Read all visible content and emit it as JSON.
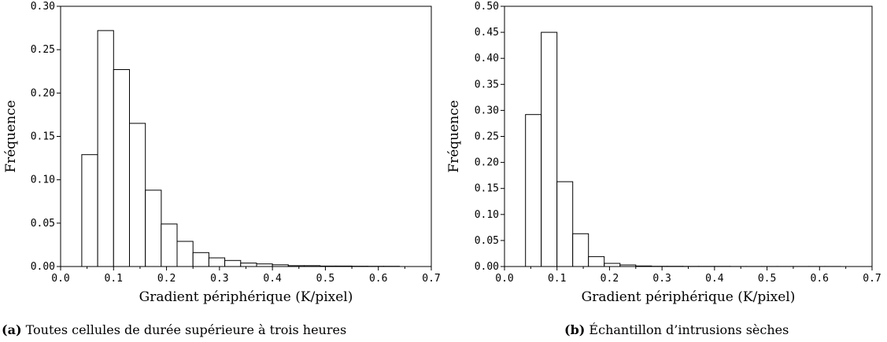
{
  "chart_data": [
    {
      "type": "bar",
      "xlabel": "Gradient périphérique (K/pixel)",
      "ylabel": "Fréquence",
      "xlim": [
        0.0,
        0.7
      ],
      "ylim": [
        0.0,
        0.3
      ],
      "xticks": [
        "0.0",
        "0.1",
        "0.2",
        "0.3",
        "0.4",
        "0.5",
        "0.6",
        "0.7"
      ],
      "yticks": [
        "0.00",
        "0.05",
        "0.10",
        "0.15",
        "0.20",
        "0.25",
        "0.30"
      ],
      "bin_edges": [
        0.04,
        0.07,
        0.1,
        0.13,
        0.16,
        0.19,
        0.22,
        0.25,
        0.28,
        0.31,
        0.34,
        0.37,
        0.4,
        0.43,
        0.46,
        0.49,
        0.52,
        0.55,
        0.58,
        0.61,
        0.64
      ],
      "values": [
        0.129,
        0.272,
        0.227,
        0.165,
        0.088,
        0.049,
        0.029,
        0.016,
        0.01,
        0.007,
        0.004,
        0.003,
        0.002,
        0.001,
        0.001,
        0.0005,
        0.0005,
        0.0004,
        0.0003,
        0.0003
      ],
      "grid": false,
      "caption_tag": "(a)",
      "caption_text": "Toutes cellules de durée supérieure à trois heures"
    },
    {
      "type": "bar",
      "xlabel": "Gradient périphérique (K/pixel)",
      "ylabel": "Fréquence",
      "xlim": [
        0.0,
        0.7
      ],
      "ylim": [
        0.0,
        0.5
      ],
      "xticks": [
        "0.0",
        "0.1",
        "0.2",
        "0.3",
        "0.4",
        "0.5",
        "0.6",
        "0.7"
      ],
      "yticks": [
        "0.00",
        "0.05",
        "0.10",
        "0.15",
        "0.20",
        "0.25",
        "0.30",
        "0.35",
        "0.40",
        "0.45",
        "0.50"
      ],
      "bin_edges": [
        0.04,
        0.07,
        0.1,
        0.13,
        0.16,
        0.19,
        0.22,
        0.25,
        0.28,
        0.31,
        0.34,
        0.37,
        0.4,
        0.43,
        0.46,
        0.49,
        0.52,
        0.55,
        0.58,
        0.61,
        0.64
      ],
      "values": [
        0.292,
        0.45,
        0.163,
        0.063,
        0.019,
        0.006,
        0.003,
        0.001,
        0.0005,
        0.0004,
        0.0003,
        0.0003,
        0.0003,
        0.0002,
        0.0002,
        0.0002,
        0.0002,
        0.0002,
        0.0002,
        0.0002
      ],
      "grid": false,
      "caption_tag": "(b)",
      "caption_text": "Échantillon d’intrusions sèches"
    }
  ]
}
